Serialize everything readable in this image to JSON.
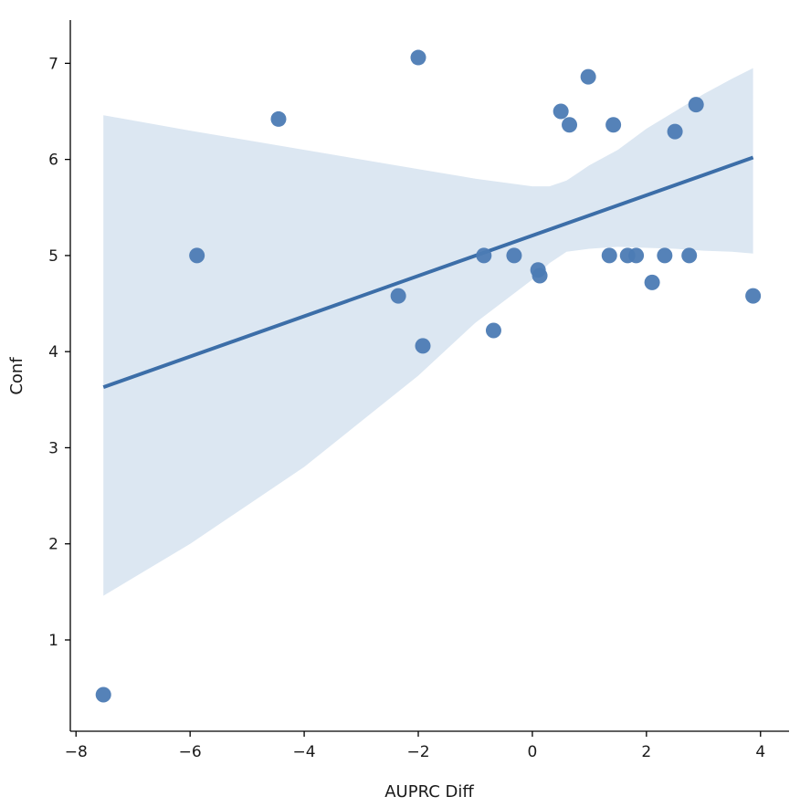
{
  "chart_data": {
    "type": "scatter",
    "title": "",
    "xlabel": "AUPRC Diff",
    "ylabel": "Conf",
    "xlim": [
      -8.1,
      4.5
    ],
    "ylim": [
      0.05,
      7.45
    ],
    "xticks": [
      -8,
      -6,
      -4,
      -2,
      0,
      2,
      4
    ],
    "xtick_labels": [
      "−8",
      "−6",
      "−4",
      "−2",
      "0",
      "2",
      "4"
    ],
    "yticks": [
      1,
      2,
      3,
      4,
      5,
      6,
      7
    ],
    "ytick_labels": [
      "1",
      "2",
      "3",
      "4",
      "5",
      "6",
      "7"
    ],
    "grid": false,
    "point_color": "#4c7bb4",
    "line_color": "#3c6ea8",
    "band_color": "#dce7f2",
    "points": [
      {
        "x": -7.52,
        "y": 0.43
      },
      {
        "x": -5.88,
        "y": 5.0
      },
      {
        "x": -4.45,
        "y": 6.42
      },
      {
        "x": -2.35,
        "y": 4.58
      },
      {
        "x": -2.0,
        "y": 7.06
      },
      {
        "x": -1.92,
        "y": 4.06
      },
      {
        "x": -0.85,
        "y": 5.0
      },
      {
        "x": -0.68,
        "y": 4.22
      },
      {
        "x": -0.32,
        "y": 5.0
      },
      {
        "x": 0.1,
        "y": 4.85
      },
      {
        "x": 0.13,
        "y": 4.79
      },
      {
        "x": 0.5,
        "y": 6.5
      },
      {
        "x": 0.65,
        "y": 6.36
      },
      {
        "x": 0.98,
        "y": 6.86
      },
      {
        "x": 1.35,
        "y": 5.0
      },
      {
        "x": 1.42,
        "y": 6.36
      },
      {
        "x": 1.67,
        "y": 5.0
      },
      {
        "x": 1.82,
        "y": 5.0
      },
      {
        "x": 2.1,
        "y": 4.72
      },
      {
        "x": 2.32,
        "y": 5.0
      },
      {
        "x": 2.5,
        "y": 6.29
      },
      {
        "x": 2.75,
        "y": 5.0
      },
      {
        "x": 2.87,
        "y": 6.57
      },
      {
        "x": 3.87,
        "y": 4.58
      }
    ],
    "regression": {
      "x": [
        -7.52,
        3.87
      ],
      "y": [
        3.63,
        6.02
      ]
    },
    "confidence_band": {
      "x": [
        -7.52,
        -6.0,
        -4.0,
        -2.0,
        -1.0,
        0.0,
        0.3,
        0.6,
        1.0,
        1.5,
        2.0,
        2.5,
        3.0,
        3.5,
        3.87
      ],
      "upper": [
        6.46,
        6.3,
        6.1,
        5.9,
        5.8,
        5.72,
        5.72,
        5.78,
        5.94,
        6.1,
        6.32,
        6.5,
        6.68,
        6.84,
        6.95
      ],
      "lower": [
        1.46,
        2.0,
        2.8,
        3.75,
        4.3,
        4.75,
        4.92,
        5.04,
        5.07,
        5.09,
        5.08,
        5.07,
        5.05,
        5.04,
        5.02
      ]
    }
  }
}
